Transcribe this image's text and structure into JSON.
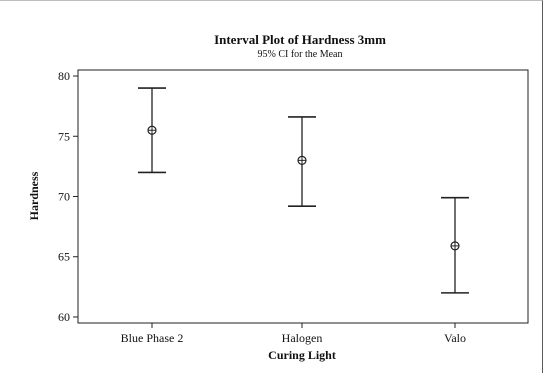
{
  "chart_data": {
    "type": "interval",
    "title": "Interval Plot of Hardness 3mm",
    "subtitle": "95% CI for the Mean",
    "xlabel": "Curing Light",
    "ylabel": "Hardness",
    "ylim": [
      59.5,
      80.5
    ],
    "yticks": [
      60,
      65,
      70,
      75,
      80
    ],
    "categories": [
      "Blue Phase 2",
      "Halogen",
      "Valo"
    ],
    "means": [
      75.5,
      73.0,
      65.9
    ],
    "ci_lower": [
      72.0,
      69.2,
      62.0
    ],
    "ci_upper": [
      79.0,
      76.6,
      69.9
    ],
    "grid": false,
    "legend": "none"
  }
}
